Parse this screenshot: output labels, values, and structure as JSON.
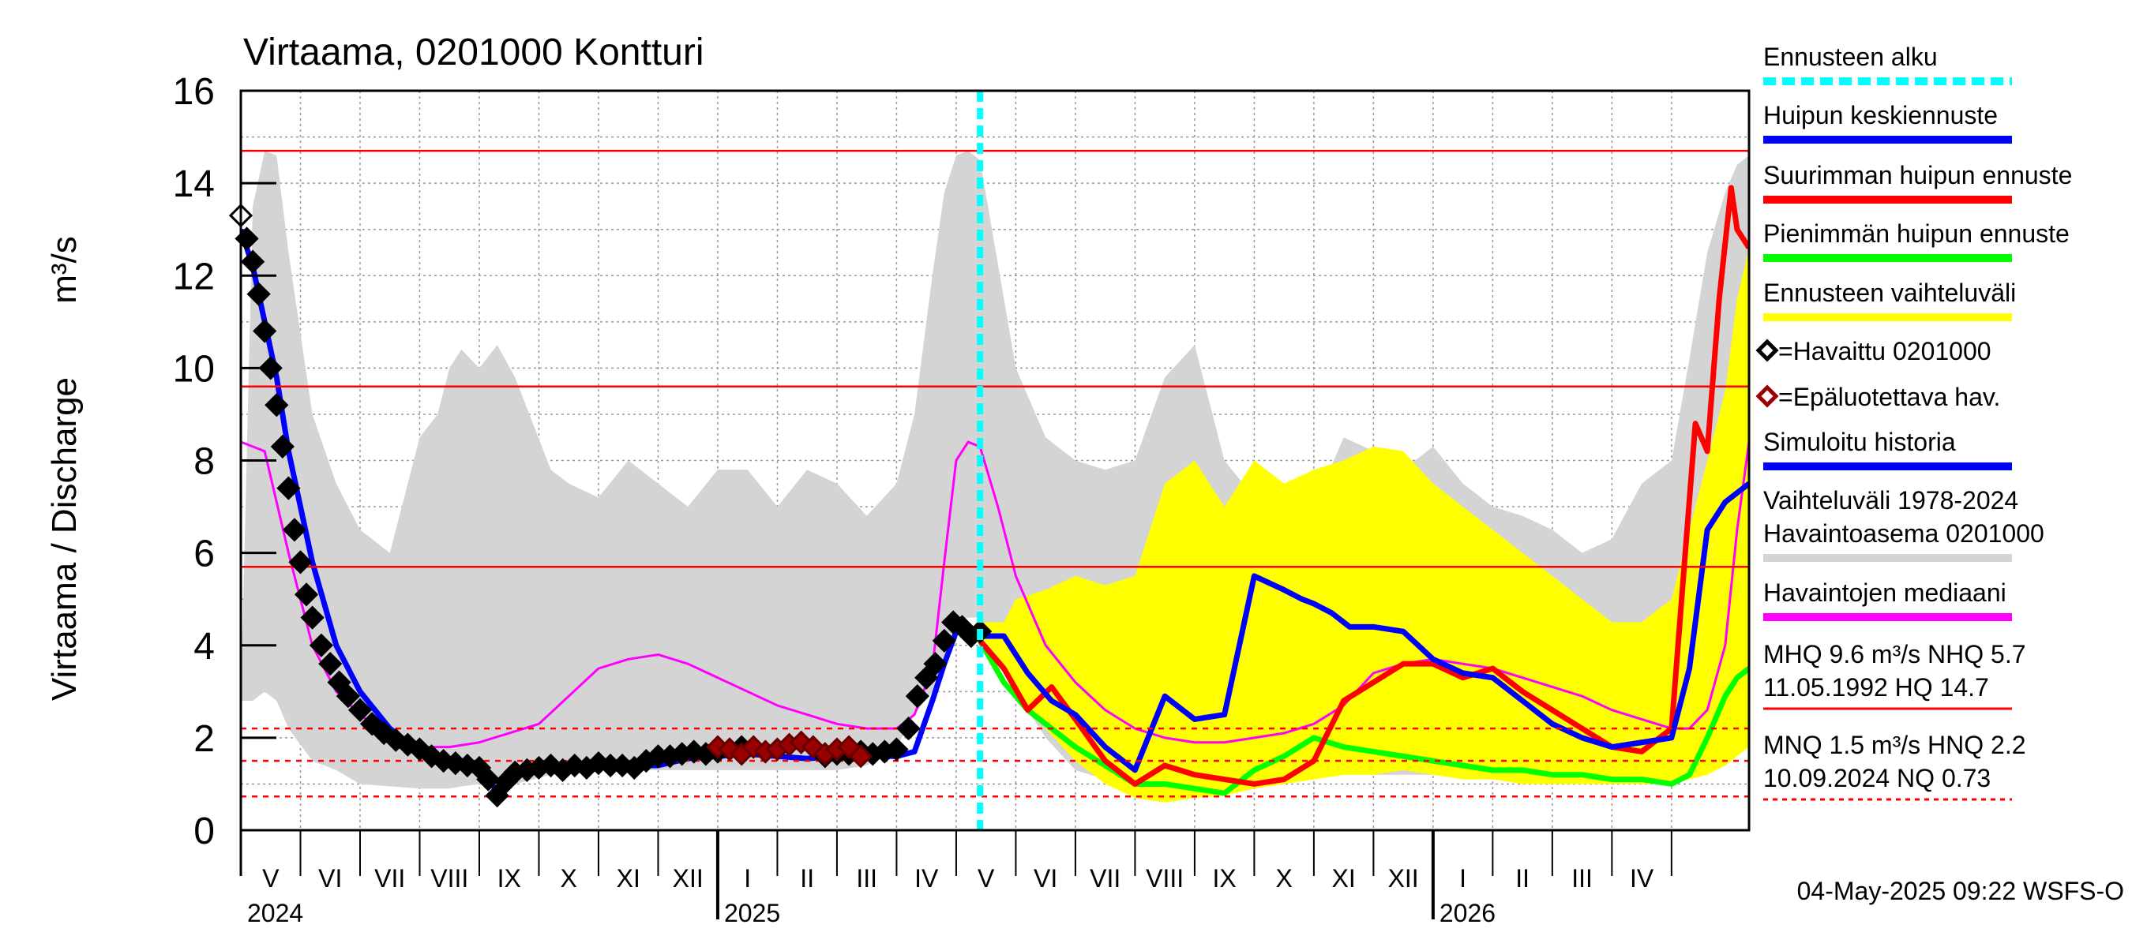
{
  "chart_data": {
    "type": "line",
    "title": "Virtaama, 0201000 Kontturi",
    "ylabel_fi": "Virtaama / Discharge",
    "ylabel_unit": "m³/s",
    "ylim": [
      0,
      16
    ],
    "yticks": [
      "0",
      "2",
      "4",
      "6",
      "8",
      "10",
      "12",
      "14",
      "16"
    ],
    "x_range_months": [
      0,
      25.3
    ],
    "forecast_start_month": 12.4,
    "month_labels": [
      "V",
      "VI",
      "VII",
      "VIII",
      "IX",
      "X",
      "XI",
      "XII",
      "I",
      "II",
      "III",
      "IV",
      "V",
      "VI",
      "VII",
      "VIII",
      "IX",
      "X",
      "XI",
      "XII",
      "I",
      "II",
      "III",
      "IV"
    ],
    "year_labels": [
      {
        "text": "2024",
        "month": 0
      },
      {
        "text": "2025",
        "month": 8
      },
      {
        "text": "2026",
        "month": 20
      }
    ],
    "reference_lines": [
      {
        "name": "HQ",
        "value": 14.7,
        "style": "solid"
      },
      {
        "name": "MHQ",
        "value": 9.6,
        "style": "solid"
      },
      {
        "name": "NHQ",
        "value": 5.7,
        "style": "solid"
      },
      {
        "name": "HNQ",
        "value": 2.2,
        "style": "dashed"
      },
      {
        "name": "MNQ",
        "value": 1.5,
        "style": "dashed"
      },
      {
        "name": "NQ",
        "value": 0.73,
        "style": "dashed"
      }
    ],
    "series": [
      {
        "name": "Vaihteluväli 1978-2024 Havaintoasema 0201000",
        "color": "#d4d4d4",
        "kind": "band",
        "x": [
          0,
          0.2,
          0.4,
          0.6,
          0.8,
          1.2,
          1.6,
          2.0,
          2.5,
          3.0,
          3.3,
          3.5,
          3.7,
          4.0,
          4.3,
          4.6,
          4.9,
          5.2,
          5.5,
          6.0,
          6.5,
          7.0,
          7.5,
          8.0,
          8.5,
          9.0,
          9.5,
          10.0,
          10.5,
          11.0,
          11.3,
          11.6,
          11.8,
          12.0,
          12.2,
          12.4,
          12.6,
          13.0,
          13.5,
          14.0,
          14.5,
          15.0,
          15.5,
          16.0,
          16.5,
          17.0,
          17.5,
          18.0,
          18.5,
          19.0,
          19.5,
          20.0,
          20.5,
          21.0,
          21.5,
          22.0,
          22.5,
          23.0,
          23.5,
          24.0,
          24.3,
          24.6,
          24.9,
          25.1,
          25.3
        ],
        "upper": [
          2.8,
          13.5,
          14.7,
          14.6,
          12.5,
          9.0,
          7.5,
          6.5,
          6.0,
          8.5,
          9.0,
          10.0,
          10.4,
          10.0,
          10.5,
          9.8,
          8.8,
          7.8,
          7.5,
          7.2,
          8.0,
          7.5,
          7.0,
          7.8,
          7.8,
          7.0,
          7.8,
          7.5,
          6.8,
          7.5,
          9.0,
          12.0,
          13.8,
          14.6,
          14.7,
          14.5,
          13.0,
          10.0,
          8.5,
          8.0,
          7.8,
          8.0,
          9.8,
          10.5,
          8.0,
          7.2,
          7.5,
          7.0,
          8.5,
          8.2,
          7.8,
          8.3,
          7.5,
          7.0,
          6.8,
          6.5,
          6.0,
          6.3,
          7.5,
          8.0,
          10.2,
          12.5,
          13.8,
          14.4,
          14.6
        ],
        "lower": [
          2.8,
          2.8,
          3.0,
          2.8,
          2.2,
          1.5,
          1.3,
          1.0,
          0.95,
          0.9,
          0.9,
          0.9,
          0.95,
          1.0,
          1.0,
          1.0,
          1.1,
          1.2,
          1.2,
          1.3,
          1.3,
          1.3,
          1.3,
          1.3,
          1.3,
          1.3,
          1.3,
          1.3,
          1.4,
          1.8,
          2.5,
          3.0,
          3.8,
          4.5,
          4.6,
          4.6,
          3.8,
          3.0,
          2.0,
          1.3,
          1.1,
          1.0,
          0.9,
          0.9,
          0.9,
          1.0,
          1.1,
          1.1,
          1.2,
          1.2,
          1.2,
          1.2,
          1.2,
          1.1,
          1.1,
          1.1,
          1.0,
          1.0,
          1.0,
          1.1,
          1.2,
          1.3,
          1.6,
          2.5,
          3.0
        ]
      },
      {
        "name": "Ennusteen vaihteluväli",
        "color": "#ffff00",
        "kind": "band",
        "x": [
          12.4,
          12.8,
          13.0,
          13.5,
          14.0,
          14.5,
          15.0,
          15.5,
          16.0,
          16.5,
          17.0,
          17.5,
          18.0,
          18.5,
          19.0,
          19.5,
          20.0,
          20.5,
          21.0,
          21.5,
          22.0,
          22.5,
          23.0,
          23.5,
          24.0,
          24.3,
          24.6,
          24.9,
          25.1,
          25.3
        ],
        "upper": [
          4.5,
          4.5,
          5.0,
          5.2,
          5.5,
          5.3,
          5.5,
          7.5,
          8.0,
          7.0,
          8.0,
          7.5,
          7.8,
          8.0,
          8.3,
          8.2,
          7.5,
          7.0,
          6.5,
          6.0,
          5.5,
          5.0,
          4.5,
          4.5,
          5.0,
          6.5,
          8.0,
          9.5,
          11.5,
          12.6
        ],
        "lower": [
          4.2,
          3.6,
          3.0,
          2.2,
          1.5,
          1.0,
          0.7,
          0.6,
          0.7,
          0.75,
          0.9,
          1.0,
          1.1,
          1.2,
          1.2,
          1.3,
          1.2,
          1.1,
          1.1,
          1.0,
          1.0,
          1.0,
          1.0,
          1.0,
          1.0,
          1.1,
          1.2,
          1.4,
          1.6,
          1.8
        ]
      },
      {
        "name": "Havaintojen mediaani",
        "color": "#ff00ff",
        "kind": "line",
        "x": [
          0,
          0.4,
          0.8,
          1.2,
          1.6,
          2.0,
          2.5,
          3.0,
          3.5,
          4.0,
          4.5,
          5.0,
          5.5,
          6.0,
          6.5,
          7.0,
          7.5,
          8.0,
          8.5,
          9.0,
          9.5,
          10.0,
          10.5,
          11.0,
          11.3,
          11.6,
          11.8,
          12.0,
          12.2,
          12.4,
          12.7,
          13.0,
          13.5,
          14.0,
          14.5,
          15.0,
          15.5,
          16.0,
          16.5,
          17.0,
          17.5,
          18.0,
          18.5,
          19.0,
          19.5,
          20.0,
          20.5,
          21.0,
          21.5,
          22.0,
          22.5,
          23.0,
          23.5,
          24.0,
          24.3,
          24.6,
          24.9,
          25.1,
          25.3
        ],
        "y": [
          8.4,
          8.2,
          6.0,
          4.0,
          3.0,
          2.5,
          2.0,
          1.8,
          1.8,
          1.9,
          2.1,
          2.3,
          2.9,
          3.5,
          3.7,
          3.8,
          3.6,
          3.3,
          3.0,
          2.7,
          2.5,
          2.3,
          2.2,
          2.2,
          2.5,
          3.5,
          5.8,
          8.0,
          8.4,
          8.3,
          7.0,
          5.5,
          4.0,
          3.2,
          2.6,
          2.2,
          2.0,
          1.9,
          1.9,
          2.0,
          2.1,
          2.3,
          2.7,
          3.4,
          3.6,
          3.7,
          3.6,
          3.5,
          3.3,
          3.1,
          2.9,
          2.6,
          2.4,
          2.2,
          2.2,
          2.6,
          4.0,
          6.5,
          8.4
        ]
      },
      {
        "name": "Simuloitu historia",
        "color": "#0000ff",
        "kind": "line",
        "x": [
          0,
          0.2,
          0.4,
          0.6,
          0.8,
          1.2,
          1.6,
          2.0,
          2.5,
          3.0,
          3.5,
          4.0,
          4.3,
          4.6,
          5.0,
          5.5,
          6.0,
          6.5,
          7.0,
          7.5,
          8.0,
          8.5,
          9.0,
          9.5,
          10.0,
          10.5,
          11.0,
          11.3,
          11.6,
          11.8,
          12.0,
          12.2,
          12.4
        ],
        "y": [
          13.0,
          12.2,
          11.0,
          9.8,
          8.2,
          5.8,
          4.0,
          3.0,
          2.2,
          1.7,
          1.5,
          1.3,
          0.85,
          1.2,
          1.3,
          1.4,
          1.4,
          1.4,
          1.4,
          1.55,
          1.6,
          1.65,
          1.6,
          1.55,
          1.6,
          1.6,
          1.6,
          1.7,
          2.8,
          3.6,
          4.3,
          4.2,
          4.3
        ]
      },
      {
        "name": "Havaittu 0201000",
        "color": "#000000",
        "kind": "markers",
        "x": [
          0,
          0.1,
          0.2,
          0.3,
          0.4,
          0.5,
          0.6,
          0.7,
          0.8,
          0.9,
          1.0,
          1.1,
          1.2,
          1.35,
          1.5,
          1.65,
          1.8,
          2.0,
          2.2,
          2.4,
          2.6,
          2.8,
          3.0,
          3.2,
          3.4,
          3.6,
          3.8,
          4.0,
          4.15,
          4.3,
          4.45,
          4.6,
          4.8,
          5.0,
          5.2,
          5.4,
          5.6,
          5.8,
          6.0,
          6.2,
          6.4,
          6.6,
          6.8,
          7.0,
          7.2,
          7.4,
          7.6,
          7.8,
          8.0,
          8.2,
          8.4,
          9.8,
          10.0,
          10.2,
          10.4,
          10.6,
          10.8,
          11.0,
          11.2,
          11.35,
          11.5,
          11.65,
          11.8,
          11.95,
          12.1,
          12.25,
          12.4
        ],
        "y": [
          13.3,
          12.8,
          12.3,
          11.6,
          10.8,
          10.0,
          9.2,
          8.3,
          7.4,
          6.5,
          5.8,
          5.1,
          4.6,
          4.0,
          3.6,
          3.2,
          2.9,
          2.6,
          2.3,
          2.1,
          1.95,
          1.85,
          1.75,
          1.6,
          1.5,
          1.45,
          1.4,
          1.35,
          1.1,
          0.75,
          1.05,
          1.25,
          1.3,
          1.35,
          1.4,
          1.3,
          1.4,
          1.35,
          1.45,
          1.4,
          1.4,
          1.35,
          1.5,
          1.6,
          1.6,
          1.65,
          1.7,
          1.65,
          1.7,
          1.75,
          1.8,
          1.6,
          1.65,
          1.65,
          1.7,
          1.65,
          1.7,
          1.75,
          2.2,
          2.9,
          3.3,
          3.6,
          4.1,
          4.5,
          4.4,
          4.2,
          4.3
        ]
      },
      {
        "name": "Epäluotettava hav.",
        "color": "#990000",
        "kind": "markers",
        "x": [
          8.0,
          8.2,
          8.4,
          8.6,
          8.8,
          9.0,
          9.2,
          9.4,
          9.6,
          9.8,
          10.0,
          10.2,
          10.4
        ],
        "y": [
          1.8,
          1.75,
          1.65,
          1.8,
          1.7,
          1.75,
          1.85,
          1.9,
          1.8,
          1.65,
          1.75,
          1.8,
          1.6
        ]
      },
      {
        "name": "Pienimmän huipun ennuste",
        "color": "#00ff00",
        "kind": "line",
        "x": [
          12.4,
          12.8,
          13.2,
          13.6,
          14.0,
          14.5,
          15.0,
          15.5,
          16.0,
          16.5,
          17.0,
          17.5,
          18.0,
          18.5,
          19.0,
          19.5,
          20.0,
          20.5,
          21.0,
          21.5,
          22.0,
          22.5,
          23.0,
          23.5,
          24.0,
          24.3,
          24.6,
          24.9,
          25.1,
          25.3
        ],
        "y": [
          4.1,
          3.2,
          2.6,
          2.2,
          1.8,
          1.4,
          1.0,
          1.0,
          0.9,
          0.8,
          1.3,
          1.6,
          2.0,
          1.8,
          1.7,
          1.6,
          1.5,
          1.4,
          1.3,
          1.3,
          1.2,
          1.2,
          1.1,
          1.1,
          1.0,
          1.2,
          2.0,
          2.9,
          3.3,
          3.5
        ]
      },
      {
        "name": "Suurimman huipun ennuste",
        "color": "#ff0000",
        "kind": "line",
        "x": [
          12.4,
          12.8,
          13.2,
          13.6,
          14.0,
          14.5,
          15.0,
          15.5,
          16.0,
          16.5,
          17.0,
          17.5,
          18.0,
          18.5,
          19.0,
          19.5,
          20.0,
          20.5,
          21.0,
          21.5,
          22.0,
          22.5,
          23.0,
          23.5,
          24.0,
          24.2,
          24.4,
          24.6,
          24.8,
          25.0,
          25.1,
          25.2,
          25.3
        ],
        "y": [
          4.1,
          3.5,
          2.6,
          3.1,
          2.4,
          1.5,
          1.0,
          1.4,
          1.2,
          1.1,
          1.0,
          1.1,
          1.5,
          2.8,
          3.2,
          3.6,
          3.6,
          3.3,
          3.5,
          3.0,
          2.6,
          2.2,
          1.8,
          1.7,
          2.2,
          5.5,
          8.8,
          8.2,
          11.5,
          13.9,
          13.0,
          12.8,
          12.6
        ]
      },
      {
        "name": "Huipun keskiennuste",
        "color": "#0000ff",
        "kind": "line",
        "x": [
          12.4,
          12.8,
          13.2,
          13.6,
          14.0,
          14.5,
          15.0,
          15.5,
          16.0,
          16.5,
          17.0,
          17.5,
          17.8,
          18.0,
          18.3,
          18.6,
          19.0,
          19.5,
          20.0,
          20.5,
          21.0,
          21.5,
          22.0,
          22.5,
          23.0,
          23.5,
          24.0,
          24.3,
          24.6,
          24.9,
          25.1,
          25.3
        ],
        "y": [
          4.2,
          4.2,
          3.4,
          2.8,
          2.5,
          1.8,
          1.3,
          2.9,
          2.4,
          2.5,
          5.5,
          5.2,
          5.0,
          4.9,
          4.7,
          4.4,
          4.4,
          4.3,
          3.7,
          3.4,
          3.3,
          2.8,
          2.3,
          2.0,
          1.8,
          1.9,
          2.0,
          3.5,
          6.5,
          7.1,
          7.3,
          7.5
        ]
      }
    ],
    "legend": {
      "placement": "right",
      "items": [
        {
          "label": "Ennusteen alku",
          "color": "#00ffff",
          "kind": "dash"
        },
        {
          "label": "Huipun keskiennuste",
          "color": "#0000ff",
          "kind": "line"
        },
        {
          "label": "Suurimman huipun ennuste",
          "color": "#ff0000",
          "kind": "line"
        },
        {
          "label": "Pienimmän huipun ennuste",
          "color": "#00ff00",
          "kind": "line"
        },
        {
          "label": "Ennusteen vaihteluväli",
          "color": "#ffff00",
          "kind": "line"
        },
        {
          "label": "=Havaittu 0201000",
          "color": "#000000",
          "kind": "diamond"
        },
        {
          "label": "=Epäluotettava hav.",
          "color": "#990000",
          "kind": "diamond"
        },
        {
          "label": "Simuloitu historia",
          "color": "#0000ff",
          "kind": "line"
        },
        {
          "label": "Vaihteluväli 1978-2024",
          "label2": " Havaintoasema 0201000",
          "color": "#d4d4d4",
          "kind": "line"
        },
        {
          "label": "Havaintojen mediaani",
          "color": "#ff00ff",
          "kind": "line"
        }
      ],
      "stats": [
        {
          "line1": "MHQ  9.6 m³/s NHQ  5.7",
          "line2": "11.05.1992 HQ 14.7",
          "color": "#ff0000",
          "style": "solid"
        },
        {
          "line1": "MNQ  1.5 m³/s HNQ  2.2",
          "line2": "10.09.2024 NQ 0.73",
          "color": "#ff0000",
          "style": "dashed"
        }
      ]
    },
    "footer": "04-May-2025 09:22 WSFS-O"
  }
}
